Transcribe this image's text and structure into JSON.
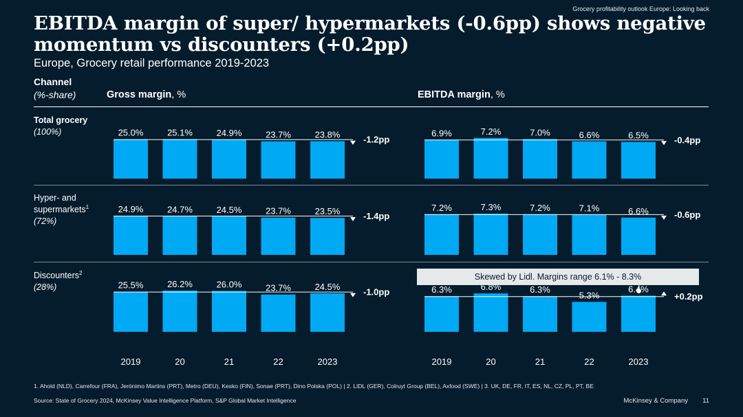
{
  "tracker": "Grocery profitability outlook Europe: Looking back",
  "title": "EBITDA margin of super/ hypermarkets (-0.6pp) shows negative momentum vs discounters (+0.2pp)",
  "subtitle": "Europe, Grocery retail performance 2019-2023",
  "channel_header": {
    "title": "Channel",
    "subtitle": "(%-share)"
  },
  "columns": {
    "gross": {
      "bold": "Gross margin",
      "unit": ", %"
    },
    "ebitda": {
      "bold": "EBITDA margin",
      "unit": ", %"
    }
  },
  "rows": [
    {
      "name": "Total grocery",
      "share": "(100%)",
      "footnote": ""
    },
    {
      "name": "Hyper- and supermarkets",
      "share": "(72%)",
      "footnote": "1"
    },
    {
      "name": "Discounters",
      "share": "(28%)",
      "footnote": "2"
    }
  ],
  "x_labels": [
    "2019",
    "20",
    "21",
    "22",
    "2023"
  ],
  "callout": "Skewed by Lidl. Margins range 6.1% - 8.3%",
  "chart_data": [
    {
      "type": "bar",
      "panel": "Gross margin",
      "row": "Total grocery",
      "categories": [
        "2019",
        "20",
        "21",
        "22",
        "2023"
      ],
      "values": [
        25.0,
        25.1,
        24.9,
        23.7,
        23.8
      ],
      "labels": [
        "25.0%",
        "25.1%",
        "24.9%",
        "23.7%",
        "23.8%"
      ],
      "delta": "-1.2pp",
      "direction": "down",
      "ylim": [
        0,
        26.2
      ]
    },
    {
      "type": "bar",
      "panel": "EBITDA margin",
      "row": "Total grocery",
      "categories": [
        "2019",
        "20",
        "21",
        "22",
        "2023"
      ],
      "values": [
        6.9,
        7.2,
        7.0,
        6.6,
        6.5
      ],
      "labels": [
        "6.9%",
        "7.2%",
        "7.0%",
        "6.6%",
        "6.5%"
      ],
      "delta": "-0.4pp",
      "direction": "down",
      "ylim": [
        0,
        7.3
      ]
    },
    {
      "type": "bar",
      "panel": "Gross margin",
      "row": "Hyper- and supermarkets",
      "categories": [
        "2019",
        "20",
        "21",
        "22",
        "2023"
      ],
      "values": [
        24.9,
        24.7,
        24.5,
        23.7,
        23.5
      ],
      "labels": [
        "24.9%",
        "24.7%",
        "24.5%",
        "23.7%",
        "23.5%"
      ],
      "delta": "-1.4pp",
      "direction": "down",
      "ylim": [
        0,
        26.2
      ]
    },
    {
      "type": "bar",
      "panel": "EBITDA margin",
      "row": "Hyper- and supermarkets",
      "categories": [
        "2019",
        "20",
        "21",
        "22",
        "2023"
      ],
      "values": [
        7.2,
        7.3,
        7.2,
        7.1,
        6.6
      ],
      "labels": [
        "7.2%",
        "7.3%",
        "7.2%",
        "7.1%",
        "6.6%"
      ],
      "delta": "-0.6pp",
      "direction": "down",
      "ylim": [
        0,
        7.3
      ]
    },
    {
      "type": "bar",
      "panel": "Gross margin",
      "row": "Discounters",
      "categories": [
        "2019",
        "20",
        "21",
        "22",
        "2023"
      ],
      "values": [
        25.5,
        26.2,
        26.0,
        23.7,
        24.5
      ],
      "labels": [
        "25.5%",
        "26.2%",
        "26.0%",
        "23.7%",
        "24.5%"
      ],
      "delta": "-1.0pp",
      "direction": "down",
      "ylim": [
        0,
        26.2
      ]
    },
    {
      "type": "bar",
      "panel": "EBITDA margin",
      "row": "Discounters",
      "categories": [
        "2019",
        "20",
        "21",
        "22",
        "2023"
      ],
      "values": [
        6.3,
        6.8,
        6.3,
        5.3,
        6.4
      ],
      "labels": [
        "6.3%",
        "6.8%",
        "6.3%",
        "5.3%",
        "6.4%"
      ],
      "delta": "+0.2pp",
      "direction": "up",
      "ylim": [
        0,
        7.3
      ]
    }
  ],
  "footnote": "1. Ahold (NLD), Carrefour (FRA), Jerónimo Martins (PRT), Metro (DEU), Kesko (FIN), Sonae (PRT), Dino Polska (POL) | 2. LIDL (GER), Colruyt Group (BEL), Axfood (SWE) | 3. UK, DE, FR, IT, ES, NL, CZ, PL, PT, BE",
  "source": "Source: State of Grocery 2024, McKinsey Value Intelligence Platform, S&P Global Market Intelligence",
  "brand": "McKinsey & Company",
  "page_number": "11",
  "colors": {
    "background": "#051c2c",
    "bar": "#00a9f4",
    "text": "#ffffff",
    "callout_bg": "#e6e9ec"
  }
}
